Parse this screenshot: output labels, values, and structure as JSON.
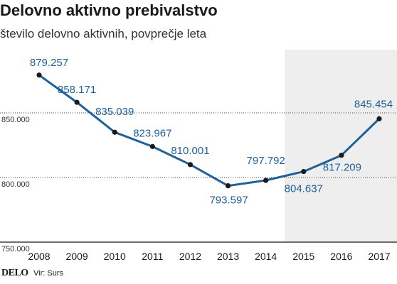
{
  "brand": "DELO",
  "source": "Vir: Surs",
  "colors": {
    "line": "#1f5f9a",
    "marker": "#1a1a1a",
    "highlight_band": "#eeeeee",
    "grid": "#444444"
  },
  "chart_data": {
    "type": "line",
    "title": "Delovno aktivno prebivalstvo",
    "subtitle": "število delovno aktivnih, povprečje leta",
    "xlabel": "",
    "ylabel": "",
    "x": [
      "2008",
      "2009",
      "2010",
      "2011",
      "2012",
      "2013",
      "2014",
      "2015",
      "2016",
      "2017"
    ],
    "series": [
      {
        "values": [
          879257,
          858171,
          835039,
          823967,
          810001,
          793597,
          797792,
          804637,
          817209,
          845454
        ],
        "labels": [
          "879.257",
          "858.171",
          "835.039",
          "823.967",
          "810.001",
          "793.597",
          "797.792",
          "804.637",
          "817.209",
          "845.454"
        ]
      }
    ],
    "ylim": [
      750000,
      900000
    ],
    "yticks": [
      750000,
      800000,
      850000
    ],
    "ytick_labels": [
      "750.000",
      "800.000",
      "850.000"
    ],
    "grid": true,
    "shaded_from": "2015"
  }
}
